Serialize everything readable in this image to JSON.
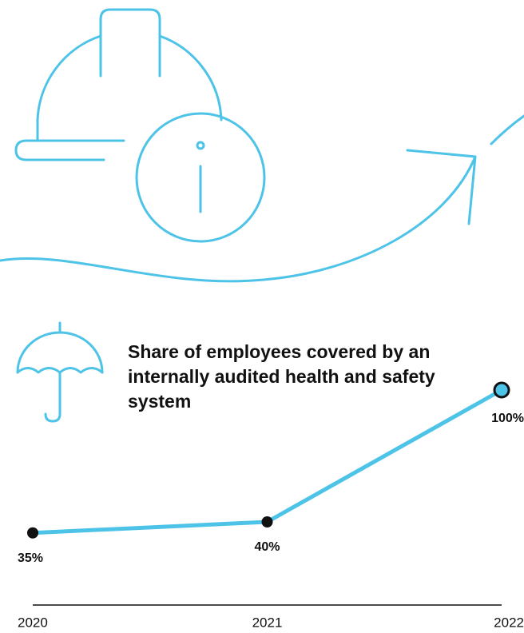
{
  "chart_data": {
    "type": "line",
    "title": "Share of employees covered by an internally audited health and safety system",
    "categories": [
      "2020",
      "2021",
      "2022"
    ],
    "series": [
      {
        "color": "#4dc3e8",
        "values": [
          35,
          40,
          100
        ],
        "value_labels": [
          "35%",
          "40%",
          "100%"
        ],
        "point_colors": [
          "#111111",
          "#111111",
          "#4dc3e8"
        ]
      }
    ]
  }
}
